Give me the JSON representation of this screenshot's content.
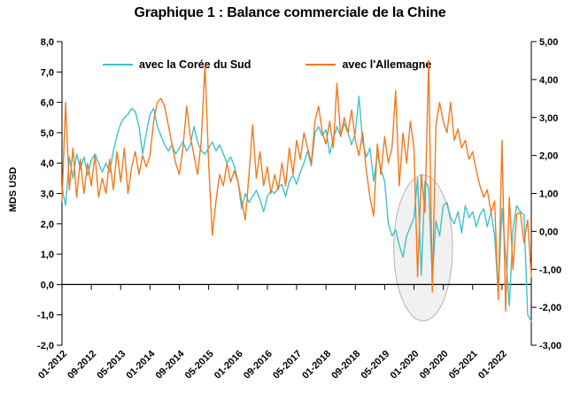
{
  "title": "Graphique 1 : Balance commerciale de la Chine",
  "legend": {
    "items": [
      {
        "label": "avec la Corée du Sud",
        "color": "#3ec4cb"
      },
      {
        "label": "avec l'Allemagne",
        "color": "#f4791d"
      }
    ]
  },
  "chart_data": {
    "type": "line",
    "title": "Graphique 1 : Balance commerciale de la Chine",
    "x_start": "01-2012",
    "x_step_months": 1,
    "n_points": 129,
    "grid": false,
    "legend_position": "top",
    "x_tick_labels": [
      "01-2012",
      "09-2012",
      "05-2013",
      "01-2014",
      "09-2014",
      "05-2015",
      "01-2016",
      "09-2016",
      "05-2017",
      "01-2018",
      "09-2018",
      "05-2019",
      "01-2020",
      "09-2020",
      "05-2021",
      "01-2022"
    ],
    "x_tick_indices": [
      0,
      8,
      16,
      24,
      32,
      40,
      48,
      56,
      64,
      72,
      80,
      88,
      96,
      104,
      112,
      120
    ],
    "left_axis": {
      "title": "MDS USD",
      "min": -2,
      "max": 8,
      "tick_values": [
        8,
        7,
        6,
        5,
        4,
        3,
        2,
        1,
        0,
        -1,
        -2
      ],
      "tick_labels": [
        "8,0",
        "7,0",
        "6,0",
        "5,0",
        "4,0",
        "3,0",
        "2,0",
        "1,0",
        "0,0",
        "-1,0",
        "-2,0"
      ]
    },
    "right_axis": {
      "min": -3,
      "max": 5,
      "tick_values": [
        5,
        4,
        3,
        2,
        1,
        0,
        -1,
        -2,
        -3
      ],
      "tick_labels": [
        "5,00",
        "4,00",
        "3,00",
        "2,00",
        "1,00",
        "0,00",
        "-1,00",
        "-2,00",
        "-3,00"
      ]
    },
    "series": [
      {
        "name": "avec la Corée du Sud",
        "axis": "left",
        "color": "#3ec4cb",
        "values": [
          3.2,
          2.6,
          4.2,
          3.5,
          4.3,
          3.8,
          4.2,
          3.6,
          4.1,
          4.3,
          4.0,
          3.7,
          4.0,
          3.7,
          4.4,
          4.9,
          5.3,
          5.5,
          5.6,
          5.8,
          5.7,
          5.2,
          4.3,
          5.0,
          5.6,
          5.8,
          5.2,
          4.9,
          4.6,
          4.4,
          4.6,
          4.3,
          4.5,
          4.7,
          4.4,
          4.6,
          5.2,
          4.7,
          4.4,
          4.3,
          4.5,
          4.7,
          4.4,
          4.6,
          4.3,
          4.0,
          4.2,
          3.9,
          3.4,
          2.5,
          3.0,
          2.7,
          2.9,
          3.1,
          2.8,
          2.4,
          2.9,
          3.1,
          3.0,
          3.2,
          3.3,
          2.9,
          3.4,
          3.6,
          3.3,
          3.7,
          4.0,
          4.4,
          3.9,
          5.0,
          5.2,
          4.9,
          5.1,
          4.3,
          4.8,
          5.2,
          4.9,
          5.3,
          5.0,
          4.6,
          5.0,
          6.2,
          4.7,
          4.2,
          4.5,
          3.4,
          4.3,
          3.8,
          3.4,
          2.0,
          1.6,
          1.8,
          1.3,
          0.9,
          1.6,
          1.9,
          2.2,
          3.5,
          0.3,
          3.4,
          3.2,
          0.2,
          2.1,
          1.6,
          2.6,
          2.7,
          2.2,
          2.0,
          2.4,
          1.7,
          2.6,
          2.2,
          2.4,
          1.9,
          2.3,
          2.5,
          1.9,
          2.4,
          1.6,
          -0.3,
          2.5,
          1.0,
          -0.7,
          1.8,
          2.6,
          2.4,
          2.3,
          -1.0,
          -1.2
        ]
      },
      {
        "name": "avec l'Allemagne",
        "axis": "right",
        "color": "#f4791d",
        "values": [
          0.8,
          3.4,
          1.1,
          2.2,
          0.9,
          1.9,
          1.0,
          1.8,
          1.2,
          2.0,
          0.9,
          1.4,
          1.0,
          1.9,
          1.1,
          2.1,
          1.3,
          2.2,
          1.0,
          1.7,
          2.1,
          1.5,
          2.0,
          1.7,
          2.0,
          2.9,
          3.4,
          3.5,
          3.3,
          2.8,
          2.3,
          1.8,
          1.5,
          2.2,
          3.3,
          2.5,
          2.0,
          1.5,
          2.4,
          4.4,
          1.8,
          -0.1,
          0.8,
          1.5,
          1.2,
          1.8,
          1.3,
          1.6,
          1.3,
          0.8,
          0.3,
          1.5,
          2.8,
          1.4,
          2.1,
          1.2,
          1.7,
          1.0,
          1.5,
          1.1,
          1.8,
          1.2,
          2.2,
          1.5,
          2.4,
          1.9,
          2.6,
          2.2,
          1.8,
          2.9,
          3.3,
          2.6,
          2.3,
          2.9,
          2.2,
          3.9,
          2.5,
          3.0,
          2.6,
          3.2,
          2.4,
          2.0,
          2.6,
          1.6,
          0.9,
          0.4,
          2.3,
          1.5,
          2.5,
          1.8,
          2.2,
          3.7,
          1.2,
          2.6,
          1.8,
          2.9,
          2.2,
          -1.2,
          1.5,
          0.5,
          4.5,
          -1.6,
          2.8,
          3.4,
          2.9,
          2.6,
          3.4,
          2.4,
          2.7,
          2.2,
          2.4,
          1.9,
          2.1,
          1.6,
          1.2,
          0.9,
          1.1,
          0.5,
          0.8,
          -1.8,
          2.4,
          -2.1,
          0.9,
          -1.0,
          0.45,
          0.5,
          -0.3,
          0.3,
          -1.2
        ]
      }
    ],
    "annotation_ellipse": {
      "cx_month_index": 98.5,
      "cy_left_value": 1.2,
      "rx_months": 8,
      "ry_left_units": 2.4,
      "fill": "#ececec",
      "stroke": "#b3b3b3"
    }
  }
}
